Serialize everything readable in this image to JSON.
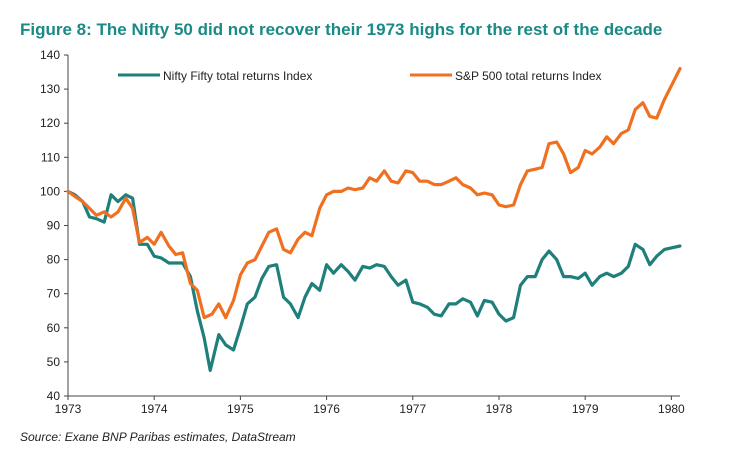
{
  "title": "Figure 8: The Nifty 50 did not recover their 1973 highs for the rest of the decade",
  "source": "Source: Exane BNP Paribas estimates, DataStream",
  "colors": {
    "title": "#1a8a86",
    "nifty": "#1f7f7a",
    "sp500": "#f07021",
    "axis": "#444444"
  },
  "chart_data": {
    "type": "line",
    "title": "Figure 8: The Nifty 50 did not recover their 1973 highs for the rest of the decade",
    "xlabel": "",
    "ylabel": "",
    "xlim": [
      1973,
      1980.1
    ],
    "ylim": [
      40,
      140
    ],
    "x_ticks": [
      "1973",
      "1974",
      "1975",
      "1976",
      "1977",
      "1978",
      "1979",
      "1980"
    ],
    "y_ticks": [
      "40",
      "50",
      "60",
      "70",
      "80",
      "90",
      "100",
      "110",
      "120",
      "130",
      "140"
    ],
    "grid": false,
    "legend": "top",
    "series": [
      {
        "name": "Nifty Fifty total returns Index",
        "color": "#1f7f7a",
        "points": [
          [
            1973.0,
            100
          ],
          [
            1973.08,
            99
          ],
          [
            1973.17,
            97
          ],
          [
            1973.25,
            92.5
          ],
          [
            1973.33,
            92
          ],
          [
            1973.42,
            91
          ],
          [
            1973.5,
            99
          ],
          [
            1973.58,
            97
          ],
          [
            1973.67,
            99
          ],
          [
            1973.75,
            98
          ],
          [
            1973.83,
            84.5
          ],
          [
            1973.92,
            84.5
          ],
          [
            1974.0,
            81
          ],
          [
            1974.08,
            80.5
          ],
          [
            1974.17,
            79
          ],
          [
            1974.25,
            79
          ],
          [
            1974.33,
            79
          ],
          [
            1974.42,
            75
          ],
          [
            1974.5,
            65
          ],
          [
            1974.58,
            57
          ],
          [
            1974.65,
            47.5
          ],
          [
            1974.75,
            58
          ],
          [
            1974.83,
            55
          ],
          [
            1974.92,
            53.5
          ],
          [
            1975.0,
            60
          ],
          [
            1975.08,
            67
          ],
          [
            1975.17,
            69
          ],
          [
            1975.25,
            74.5
          ],
          [
            1975.33,
            78
          ],
          [
            1975.42,
            78.5
          ],
          [
            1975.5,
            69
          ],
          [
            1975.58,
            67
          ],
          [
            1975.67,
            63
          ],
          [
            1975.75,
            69
          ],
          [
            1975.83,
            73
          ],
          [
            1975.92,
            71
          ],
          [
            1976.0,
            78.5
          ],
          [
            1976.08,
            76
          ],
          [
            1976.17,
            78.5
          ],
          [
            1976.25,
            76.5
          ],
          [
            1976.33,
            74
          ],
          [
            1976.42,
            78
          ],
          [
            1976.5,
            77.5
          ],
          [
            1976.58,
            78.5
          ],
          [
            1976.67,
            78
          ],
          [
            1976.75,
            75
          ],
          [
            1976.83,
            72.5
          ],
          [
            1976.92,
            74
          ],
          [
            1977.0,
            67.5
          ],
          [
            1977.08,
            67
          ],
          [
            1977.17,
            66
          ],
          [
            1977.25,
            64
          ],
          [
            1977.33,
            63.5
          ],
          [
            1977.42,
            67
          ],
          [
            1977.5,
            67
          ],
          [
            1977.58,
            68.5
          ],
          [
            1977.67,
            67.5
          ],
          [
            1977.75,
            63.5
          ],
          [
            1977.83,
            68
          ],
          [
            1977.92,
            67.5
          ],
          [
            1978.0,
            64
          ],
          [
            1978.08,
            62
          ],
          [
            1978.17,
            63
          ],
          [
            1978.25,
            72.5
          ],
          [
            1978.33,
            75
          ],
          [
            1978.42,
            75
          ],
          [
            1978.5,
            80
          ],
          [
            1978.58,
            82.5
          ],
          [
            1978.67,
            80
          ],
          [
            1978.75,
            75
          ],
          [
            1978.83,
            75
          ],
          [
            1978.92,
            74.5
          ],
          [
            1979.0,
            76
          ],
          [
            1979.08,
            72.5
          ],
          [
            1979.17,
            75
          ],
          [
            1979.25,
            76
          ],
          [
            1979.33,
            75
          ],
          [
            1979.42,
            76
          ],
          [
            1979.5,
            78
          ],
          [
            1979.58,
            84.5
          ],
          [
            1979.67,
            83
          ],
          [
            1979.75,
            78.5
          ],
          [
            1979.83,
            81
          ],
          [
            1979.92,
            83
          ],
          [
            1980.1,
            84
          ]
        ]
      },
      {
        "name": "S&P 500 total returns Index",
        "color": "#f07021",
        "points": [
          [
            1973.0,
            100
          ],
          [
            1973.08,
            98.5
          ],
          [
            1973.17,
            97
          ],
          [
            1973.25,
            95
          ],
          [
            1973.33,
            93
          ],
          [
            1973.42,
            94
          ],
          [
            1973.5,
            92.5
          ],
          [
            1973.58,
            94
          ],
          [
            1973.67,
            98
          ],
          [
            1973.75,
            95
          ],
          [
            1973.83,
            85
          ],
          [
            1973.92,
            86.5
          ],
          [
            1974.0,
            84.5
          ],
          [
            1974.08,
            88
          ],
          [
            1974.17,
            84
          ],
          [
            1974.25,
            81.5
          ],
          [
            1974.33,
            82
          ],
          [
            1974.42,
            73
          ],
          [
            1974.5,
            71
          ],
          [
            1974.58,
            63
          ],
          [
            1974.67,
            64
          ],
          [
            1974.75,
            67
          ],
          [
            1974.83,
            63
          ],
          [
            1974.92,
            68
          ],
          [
            1975.0,
            75.5
          ],
          [
            1975.08,
            79
          ],
          [
            1975.17,
            80
          ],
          [
            1975.25,
            84
          ],
          [
            1975.33,
            88
          ],
          [
            1975.42,
            89
          ],
          [
            1975.5,
            83
          ],
          [
            1975.58,
            82
          ],
          [
            1975.67,
            86
          ],
          [
            1975.75,
            88
          ],
          [
            1975.83,
            87
          ],
          [
            1975.92,
            95
          ],
          [
            1976.0,
            99
          ],
          [
            1976.08,
            100
          ],
          [
            1976.17,
            100
          ],
          [
            1976.25,
            101
          ],
          [
            1976.33,
            100.5
          ],
          [
            1976.42,
            101
          ],
          [
            1976.5,
            104
          ],
          [
            1976.58,
            103
          ],
          [
            1976.67,
            106
          ],
          [
            1976.75,
            103
          ],
          [
            1976.83,
            102.5
          ],
          [
            1976.92,
            106
          ],
          [
            1977.0,
            105.5
          ],
          [
            1977.08,
            103
          ],
          [
            1977.17,
            103
          ],
          [
            1977.25,
            102
          ],
          [
            1977.33,
            102
          ],
          [
            1977.42,
            103
          ],
          [
            1977.5,
            104
          ],
          [
            1977.58,
            102
          ],
          [
            1977.67,
            101
          ],
          [
            1977.75,
            99
          ],
          [
            1977.83,
            99.5
          ],
          [
            1977.92,
            99
          ],
          [
            1978.0,
            96
          ],
          [
            1978.08,
            95.5
          ],
          [
            1978.17,
            96
          ],
          [
            1978.25,
            102
          ],
          [
            1978.33,
            106
          ],
          [
            1978.42,
            106.5
          ],
          [
            1978.5,
            107
          ],
          [
            1978.58,
            114
          ],
          [
            1978.67,
            114.5
          ],
          [
            1978.75,
            111
          ],
          [
            1978.83,
            105.5
          ],
          [
            1978.92,
            107
          ],
          [
            1979.0,
            112
          ],
          [
            1979.08,
            111
          ],
          [
            1979.17,
            113
          ],
          [
            1979.25,
            116
          ],
          [
            1979.33,
            114
          ],
          [
            1979.42,
            117
          ],
          [
            1979.5,
            118
          ],
          [
            1979.58,
            124
          ],
          [
            1979.67,
            126
          ],
          [
            1979.75,
            122
          ],
          [
            1979.83,
            121.5
          ],
          [
            1979.92,
            127
          ],
          [
            1980.0,
            131
          ],
          [
            1980.1,
            136
          ]
        ]
      }
    ]
  }
}
